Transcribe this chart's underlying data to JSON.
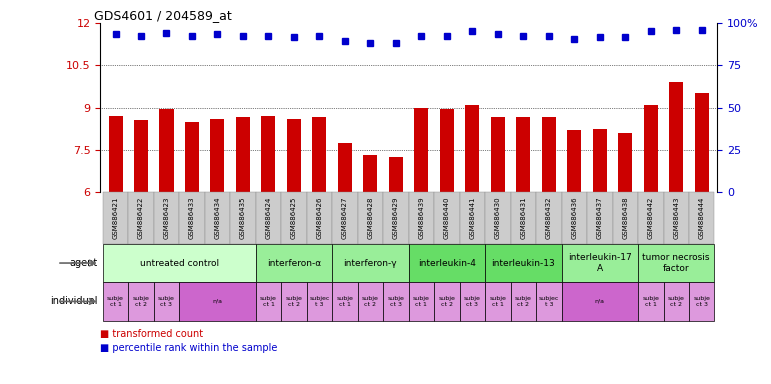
{
  "title": "GDS4601 / 204589_at",
  "sample_ids": [
    "GSM886421",
    "GSM886422",
    "GSM886423",
    "GSM886433",
    "GSM886434",
    "GSM886435",
    "GSM886424",
    "GSM886425",
    "GSM886426",
    "GSM886427",
    "GSM886428",
    "GSM886429",
    "GSM886439",
    "GSM886440",
    "GSM886441",
    "GSM886430",
    "GSM886431",
    "GSM886432",
    "GSM886436",
    "GSM886437",
    "GSM886438",
    "GSM886442",
    "GSM886443",
    "GSM886444"
  ],
  "bar_values": [
    8.7,
    8.55,
    8.95,
    8.5,
    8.6,
    8.65,
    8.7,
    8.6,
    8.65,
    7.75,
    7.3,
    7.25,
    9.0,
    8.95,
    9.1,
    8.65,
    8.65,
    8.65,
    8.2,
    8.25,
    8.1,
    9.1,
    9.9,
    9.5
  ],
  "dot_values": [
    11.6,
    11.55,
    11.65,
    11.55,
    11.6,
    11.55,
    11.55,
    11.5,
    11.55,
    11.35,
    11.3,
    11.3,
    11.55,
    11.55,
    11.7,
    11.6,
    11.55,
    11.55,
    11.45,
    11.5,
    11.5,
    11.7,
    11.75,
    11.75
  ],
  "ylim_left": [
    6,
    12
  ],
  "yticks_left": [
    6,
    7.5,
    9,
    10.5,
    12
  ],
  "yticks_right_labels": [
    "0",
    "25",
    "50",
    "75",
    "100%"
  ],
  "bar_color": "#cc0000",
  "dot_color": "#0000cc",
  "gridline_values": [
    7.5,
    9.0,
    10.5
  ],
  "xtick_bg_color": "#cccccc",
  "agent_groups": [
    {
      "label": "untreated control",
      "start": 0,
      "end": 6,
      "color": "#ccffcc"
    },
    {
      "label": "interferon-α",
      "start": 6,
      "end": 9,
      "color": "#99ee99"
    },
    {
      "label": "interferon-γ",
      "start": 9,
      "end": 12,
      "color": "#99ee99"
    },
    {
      "label": "interleukin-4",
      "start": 12,
      "end": 15,
      "color": "#66dd66"
    },
    {
      "label": "interleukin-13",
      "start": 15,
      "end": 18,
      "color": "#66dd66"
    },
    {
      "label": "interleukin-17\nA",
      "start": 18,
      "end": 21,
      "color": "#99ee99"
    },
    {
      "label": "tumor necrosis\nfactor",
      "start": 21,
      "end": 24,
      "color": "#99ee99"
    }
  ],
  "indiv_layout": [
    [
      0,
      1,
      "subje\nct 1",
      "#dd99dd"
    ],
    [
      1,
      2,
      "subje\nct 2",
      "#dd99dd"
    ],
    [
      2,
      3,
      "subje\nct 3",
      "#dd99dd"
    ],
    [
      3,
      6,
      "n/a",
      "#cc66cc"
    ],
    [
      6,
      7,
      "subje\nct 1",
      "#dd99dd"
    ],
    [
      7,
      8,
      "subje\nct 2",
      "#dd99dd"
    ],
    [
      8,
      9,
      "subjec\nt 3",
      "#dd99dd"
    ],
    [
      9,
      10,
      "subje\nct 1",
      "#dd99dd"
    ],
    [
      10,
      11,
      "subje\nct 2",
      "#dd99dd"
    ],
    [
      11,
      12,
      "subje\nct 3",
      "#dd99dd"
    ],
    [
      12,
      13,
      "subje\nct 1",
      "#dd99dd"
    ],
    [
      13,
      14,
      "subje\nct 2",
      "#dd99dd"
    ],
    [
      14,
      15,
      "subje\nct 3",
      "#dd99dd"
    ],
    [
      15,
      16,
      "subje\nct 1",
      "#dd99dd"
    ],
    [
      16,
      17,
      "subje\nct 2",
      "#dd99dd"
    ],
    [
      17,
      18,
      "subjec\nt 3",
      "#dd99dd"
    ],
    [
      18,
      21,
      "n/a",
      "#cc66cc"
    ],
    [
      21,
      22,
      "subje\nct 1",
      "#dd99dd"
    ],
    [
      22,
      23,
      "subje\nct 2",
      "#dd99dd"
    ],
    [
      23,
      24,
      "subje\nct 3",
      "#dd99dd"
    ]
  ]
}
